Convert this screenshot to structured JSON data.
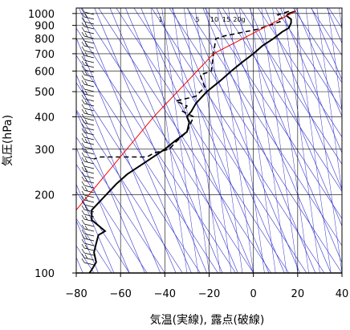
{
  "chart_data": {
    "type": "line",
    "title": "",
    "xlabel": "気温(実線), 露点(破線)",
    "ylabel": "気圧(hPa)",
    "xlim": [
      -80,
      40
    ],
    "ylim_pressure": [
      1050,
      100
    ],
    "y_scale": "log",
    "x_ticks": [
      -80,
      -60,
      -40,
      -20,
      0,
      20,
      40
    ],
    "x_tick_labels": [
      "−80",
      "−60",
      "−40",
      "−20",
      "0",
      "20",
      "40"
    ],
    "y_ticks": [
      100,
      200,
      300,
      400,
      500,
      600,
      700,
      800,
      900,
      1000
    ],
    "y_tick_labels": [
      "100",
      "200",
      "300",
      "400",
      "500",
      "600",
      "700",
      "800",
      "900",
      "1000"
    ],
    "grid": true,
    "mixing_ratio_labels": [
      {
        "value": 1,
        "text": "1"
      },
      {
        "value": 5,
        "text": "5"
      },
      {
        "value": 10,
        "text": "10"
      },
      {
        "value": 15,
        "text": "15"
      },
      {
        "value": 20,
        "text": "20g"
      }
    ],
    "colors": {
      "temperature": "#000000",
      "dewpoint": "#000000",
      "reference": "#ff0000",
      "background_lines": "#3333cc",
      "grid": "#000000"
    },
    "series": [
      {
        "name": "気温",
        "style": "solid",
        "points": [
          [
            19,
            1020
          ],
          [
            16,
            1000
          ],
          [
            15,
            980
          ],
          [
            17,
            950
          ],
          [
            17,
            920
          ],
          [
            16,
            880
          ],
          [
            13,
            850
          ],
          [
            9,
            800
          ],
          [
            4,
            750
          ],
          [
            0,
            700
          ],
          [
            -5,
            650
          ],
          [
            -10,
            600
          ],
          [
            -15,
            550
          ],
          [
            -21,
            500
          ],
          [
            -26,
            450
          ],
          [
            -28,
            420
          ],
          [
            -30,
            400
          ],
          [
            -29,
            380
          ],
          [
            -30,
            350
          ],
          [
            -36,
            320
          ],
          [
            -40,
            300
          ],
          [
            -48,
            270
          ],
          [
            -57,
            240
          ],
          [
            -62,
            220
          ],
          [
            -69,
            190
          ],
          [
            -73,
            175
          ],
          [
            -73,
            160
          ],
          [
            -69,
            150
          ],
          [
            -67,
            145
          ],
          [
            -70,
            140
          ],
          [
            -71,
            130
          ],
          [
            -72,
            120
          ],
          [
            -71,
            110
          ],
          [
            -73,
            103
          ],
          [
            -74,
            100
          ]
        ]
      },
      {
        "name": "露点",
        "style": "dashed",
        "points": [
          [
            16,
            1020
          ],
          [
            13,
            1000
          ],
          [
            11,
            990
          ],
          [
            13,
            960
          ],
          [
            11,
            950
          ],
          [
            12,
            930
          ],
          [
            2,
            870
          ],
          [
            -13,
            820
          ],
          [
            -17,
            800
          ],
          [
            -18,
            700
          ],
          [
            -19,
            600
          ],
          [
            -24,
            580
          ],
          [
            -22,
            520
          ],
          [
            -26,
            480
          ],
          [
            -35,
            460
          ],
          [
            -30,
            440
          ],
          [
            -32,
            420
          ],
          [
            -27,
            400
          ],
          [
            -30,
            350
          ],
          [
            -35,
            320
          ],
          [
            -38,
            300
          ],
          [
            -45,
            290
          ],
          [
            -48,
            280
          ],
          [
            -58,
            280
          ],
          [
            -69,
            280
          ],
          [
            -72,
            275
          ]
        ]
      },
      {
        "name": "",
        "style": "red",
        "points": [
          [
            19,
            1020
          ],
          [
            -18,
            700
          ],
          [
            -45,
            400
          ],
          [
            -80,
            175
          ]
        ]
      }
    ],
    "wind_barbs_note": "vertical wind barb column along the left edge"
  }
}
